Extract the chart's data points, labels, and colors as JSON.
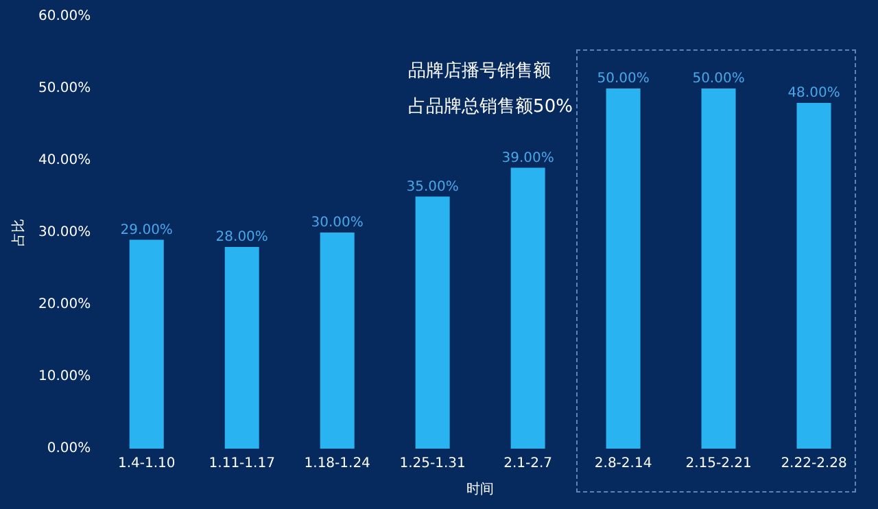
{
  "chart_data": {
    "type": "bar",
    "xlabel": "时间",
    "ylabel": "占比",
    "categories": [
      "1.4-1.10",
      "1.11-1.17",
      "1.18-1.24",
      "1.25-1.31",
      "2.1-2.7",
      "2.8-2.14",
      "2.15-2.21",
      "2.22-2.28"
    ],
    "values": [
      29,
      28,
      30,
      35,
      39,
      50,
      50,
      48
    ],
    "value_labels": [
      "29.00%",
      "28.00%",
      "30.00%",
      "35.00%",
      "39.00%",
      "50.00%",
      "50.00%",
      "48.00%"
    ],
    "color": "#29b3f0",
    "ylim": [
      0,
      60
    ],
    "yticks": [
      {
        "value": 0,
        "label": "0.00%"
      },
      {
        "value": 10,
        "label": "10.00%"
      },
      {
        "value": 20,
        "label": "20.00%"
      },
      {
        "value": 30,
        "label": "30.00%"
      },
      {
        "value": 40,
        "label": "40.00%"
      },
      {
        "value": 50,
        "label": "50.00%"
      },
      {
        "value": 60,
        "label": "60.00%"
      }
    ],
    "grid": false,
    "annotations": [
      "品牌店播号销售额",
      "占品牌总销售额50%"
    ]
  }
}
